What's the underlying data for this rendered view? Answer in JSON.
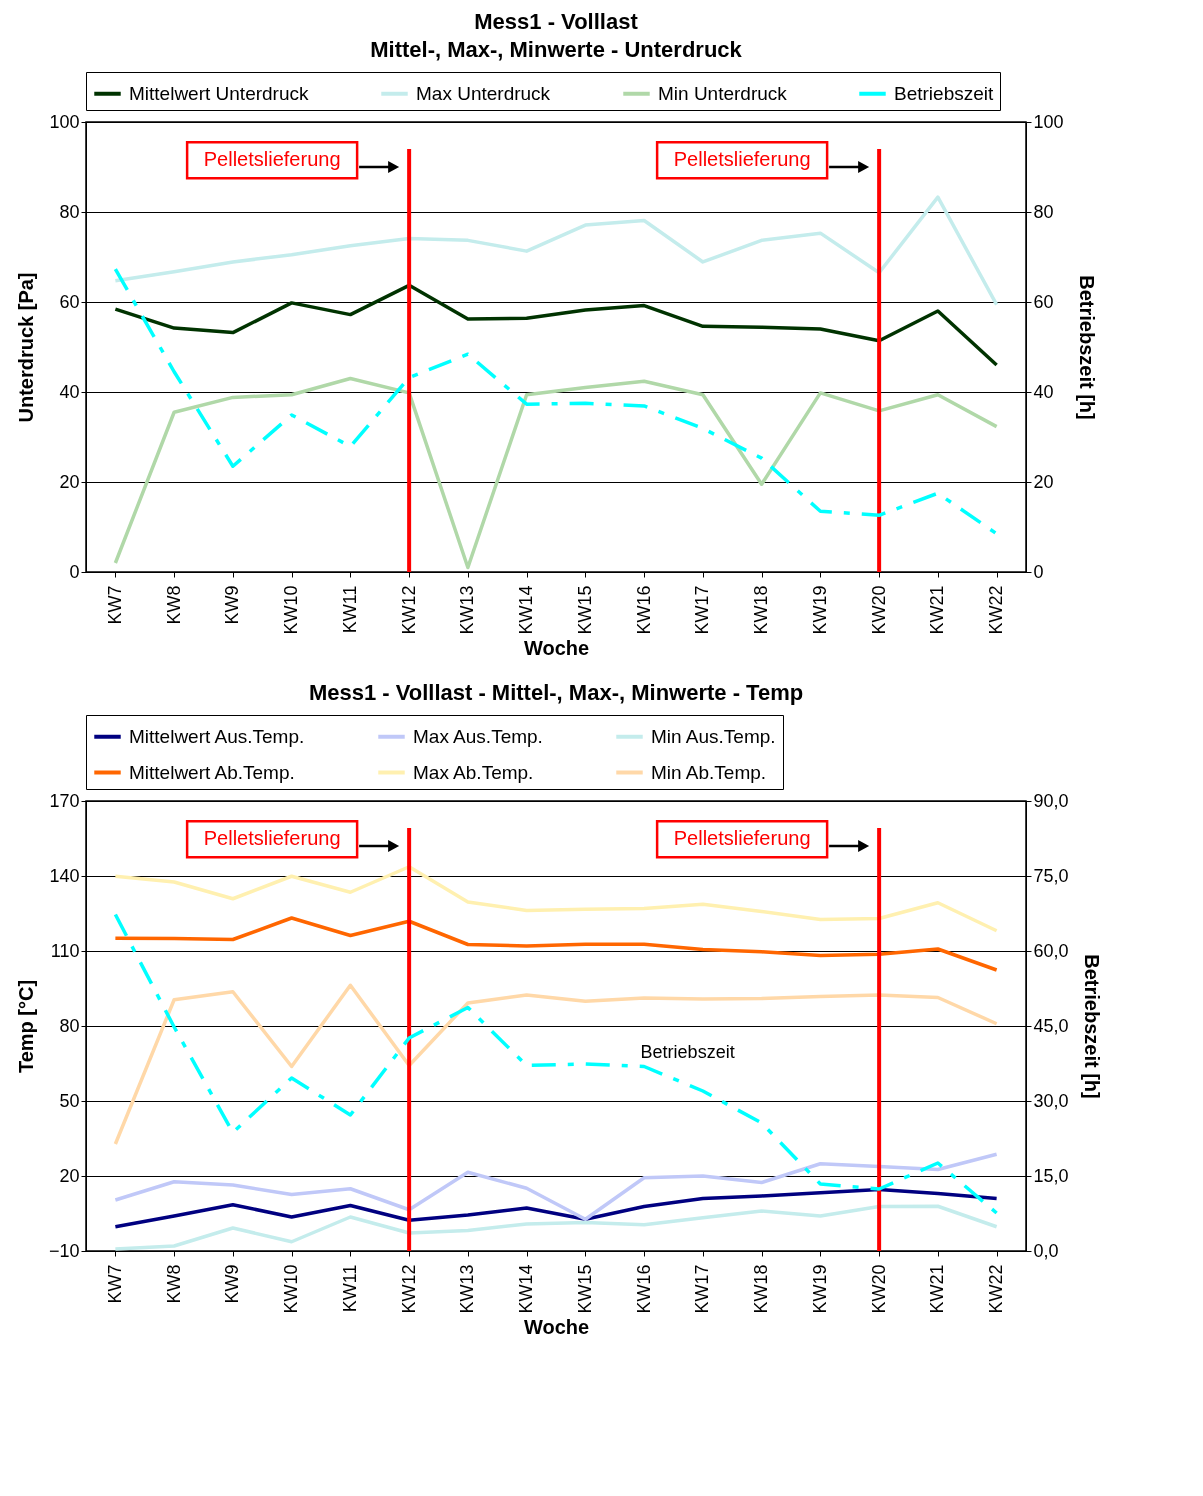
{
  "chart_data": [
    {
      "type": "line",
      "title": "Mess1 - Volllast",
      "subtitle": "Mittel-, Max-, Minwerte - Unterdruck",
      "xlabel": "Woche",
      "ylabel": "Unterdruck [Pa]",
      "y2label": "Betriebszeit [h]",
      "categories": [
        "KW7",
        "KW8",
        "KW9",
        "KW10",
        "KW11",
        "KW12",
        "KW13",
        "KW14",
        "KW15",
        "KW16",
        "KW17",
        "KW18",
        "KW19",
        "KW20",
        "KW21",
        "KW22"
      ],
      "series": [
        {
          "name": "Mittelwert Unterdruck",
          "color": "#003300",
          "values": [
            58.4,
            54.2,
            53.2,
            59.8,
            57.2,
            63.7,
            56.2,
            56.4,
            58.2,
            59.2,
            54.6,
            54.4,
            54,
            51.4,
            58,
            46
          ]
        },
        {
          "name": "Max Unterdruck",
          "color": "#c4ecec",
          "values": [
            64.7,
            66.7,
            68.9,
            70.5,
            72.5,
            74.1,
            73.7,
            71.3,
            77.1,
            78.1,
            68.9,
            73.7,
            75.3,
            66.5,
            83.3,
            59.4
          ]
        },
        {
          "name": "Min Unterdruck",
          "color": "#b0d8a8",
          "values": [
            2,
            35.5,
            38.8,
            39.4,
            43,
            39.8,
            1,
            39.4,
            41,
            42.4,
            39.4,
            19.5,
            39.8,
            35.8,
            39.4,
            32.3
          ]
        },
        {
          "name": "Betriebszeit",
          "color": "#00ffff",
          "axis": "y2",
          "line_style": "dashed",
          "values": [
            67.3,
            44.5,
            23.5,
            34.9,
            27.9,
            43.2,
            48.4,
            37.3,
            37.5,
            36.9,
            31.9,
            25.3,
            13.5,
            12.6,
            17.5,
            8.5
          ]
        }
      ],
      "ylim": [
        0,
        100
      ],
      "yticks": [
        0,
        20,
        40,
        60,
        80,
        100
      ],
      "y2lim": [
        0,
        100
      ],
      "y2ticks": [
        0,
        20,
        40,
        60,
        80,
        100
      ],
      "grid": "y",
      "legend": "top",
      "ref_lines": [
        {
          "axis": "x",
          "value": "KW12",
          "label": "Pelletslieferung",
          "color": "#ff0000"
        },
        {
          "axis": "x",
          "value": "KW20",
          "label": "Pelletslieferung",
          "color": "#ff0000"
        }
      ]
    },
    {
      "type": "line",
      "title": "Mess1 - Volllast - Mittel-, Max-, Minwerte - Temp",
      "xlabel": "Woche",
      "ylabel": "Temp [°C]",
      "y2label": "Betriebszeit [h]",
      "categories": [
        "KW7",
        "KW8",
        "KW9",
        "KW10",
        "KW11",
        "KW12",
        "KW13",
        "KW14",
        "KW15",
        "KW16",
        "KW17",
        "KW18",
        "KW19",
        "KW20",
        "KW21",
        "KW22"
      ],
      "series": [
        {
          "name": "Mittelwert Aus.Temp.",
          "color": "#000080",
          "values": [
            -0.3,
            4,
            8.5,
            3.6,
            8.2,
            2.3,
            4.4,
            7.2,
            2.7,
            7.8,
            11,
            12,
            13.3,
            14.6,
            13,
            11
          ]
        },
        {
          "name": "Max Aus.Temp.",
          "color": "#c0c8f8",
          "values": [
            10.4,
            17.7,
            16.4,
            12.6,
            14.9,
            6.5,
            21.5,
            15.1,
            2.7,
            19.3,
            20,
            17.4,
            24.9,
            23.8,
            22.6,
            28.7
          ]
        },
        {
          "name": "Min Aus.Temp.",
          "color": "#c4ecec",
          "values": [
            -9.2,
            -8,
            -0.8,
            -6.3,
            3.6,
            -2.8,
            -1.8,
            0.8,
            1.4,
            0.5,
            3.3,
            6,
            4,
            7.8,
            7.9,
            -0.3
          ]
        },
        {
          "name": "Mittelwert Ab.Temp.",
          "color": "#ff6600",
          "values": [
            115.1,
            115,
            114.6,
            123.2,
            116.2,
            121.9,
            112.6,
            112,
            112.7,
            112.7,
            110.6,
            109.7,
            108.2,
            108.7,
            110.8,
            102.4
          ]
        },
        {
          "name": "Max Ab.Temp.",
          "color": "#fff0b0",
          "values": [
            139.9,
            137.6,
            130.9,
            139.9,
            133.5,
            143.7,
            129.6,
            126.2,
            126.7,
            127,
            128.7,
            125.8,
            122.6,
            123,
            129.3,
            118.1
          ]
        },
        {
          "name": "Min Ab.Temp.",
          "color": "#ffd8a8",
          "values": [
            32.8,
            90.5,
            93.7,
            63.8,
            96.3,
            64.2,
            89.2,
            92.4,
            89.9,
            91.2,
            90.8,
            91,
            91.8,
            92.4,
            91.4,
            80.9
          ]
        },
        {
          "color": "#00ffff",
          "axis": "y2",
          "line_style": "dashed",
          "values": [
            67.3,
            44.8,
            23.7,
            34.6,
            27.2,
            42.6,
            48.7,
            37.1,
            37.4,
            36.9,
            32,
            25.6,
            13.4,
            12.4,
            17.6,
            7.6
          ]
        }
      ],
      "ylim": [
        -10,
        170
      ],
      "yticks": [
        -10,
        20,
        50,
        80,
        110,
        140,
        170
      ],
      "y2lim": [
        0,
        90
      ],
      "y2ticks": [
        {
          "value": 0,
          "label": "0,0"
        },
        {
          "value": 15,
          "label": "15,0"
        },
        {
          "value": 30,
          "label": "30,0"
        },
        {
          "value": 45,
          "label": "45,0"
        },
        {
          "value": 60,
          "label": "60,0"
        },
        {
          "value": 75,
          "label": "75,0"
        },
        {
          "value": 90,
          "label": "90,0"
        }
      ],
      "grid": "y",
      "legend": "top",
      "annotations": [
        "Betriebszeit"
      ],
      "ref_lines": [
        {
          "axis": "x",
          "value": "KW12",
          "label": "Pelletslieferung",
          "color": "#ff0000"
        },
        {
          "axis": "x",
          "value": "KW20",
          "label": "Pelletslieferung",
          "color": "#ff0000"
        }
      ]
    }
  ]
}
